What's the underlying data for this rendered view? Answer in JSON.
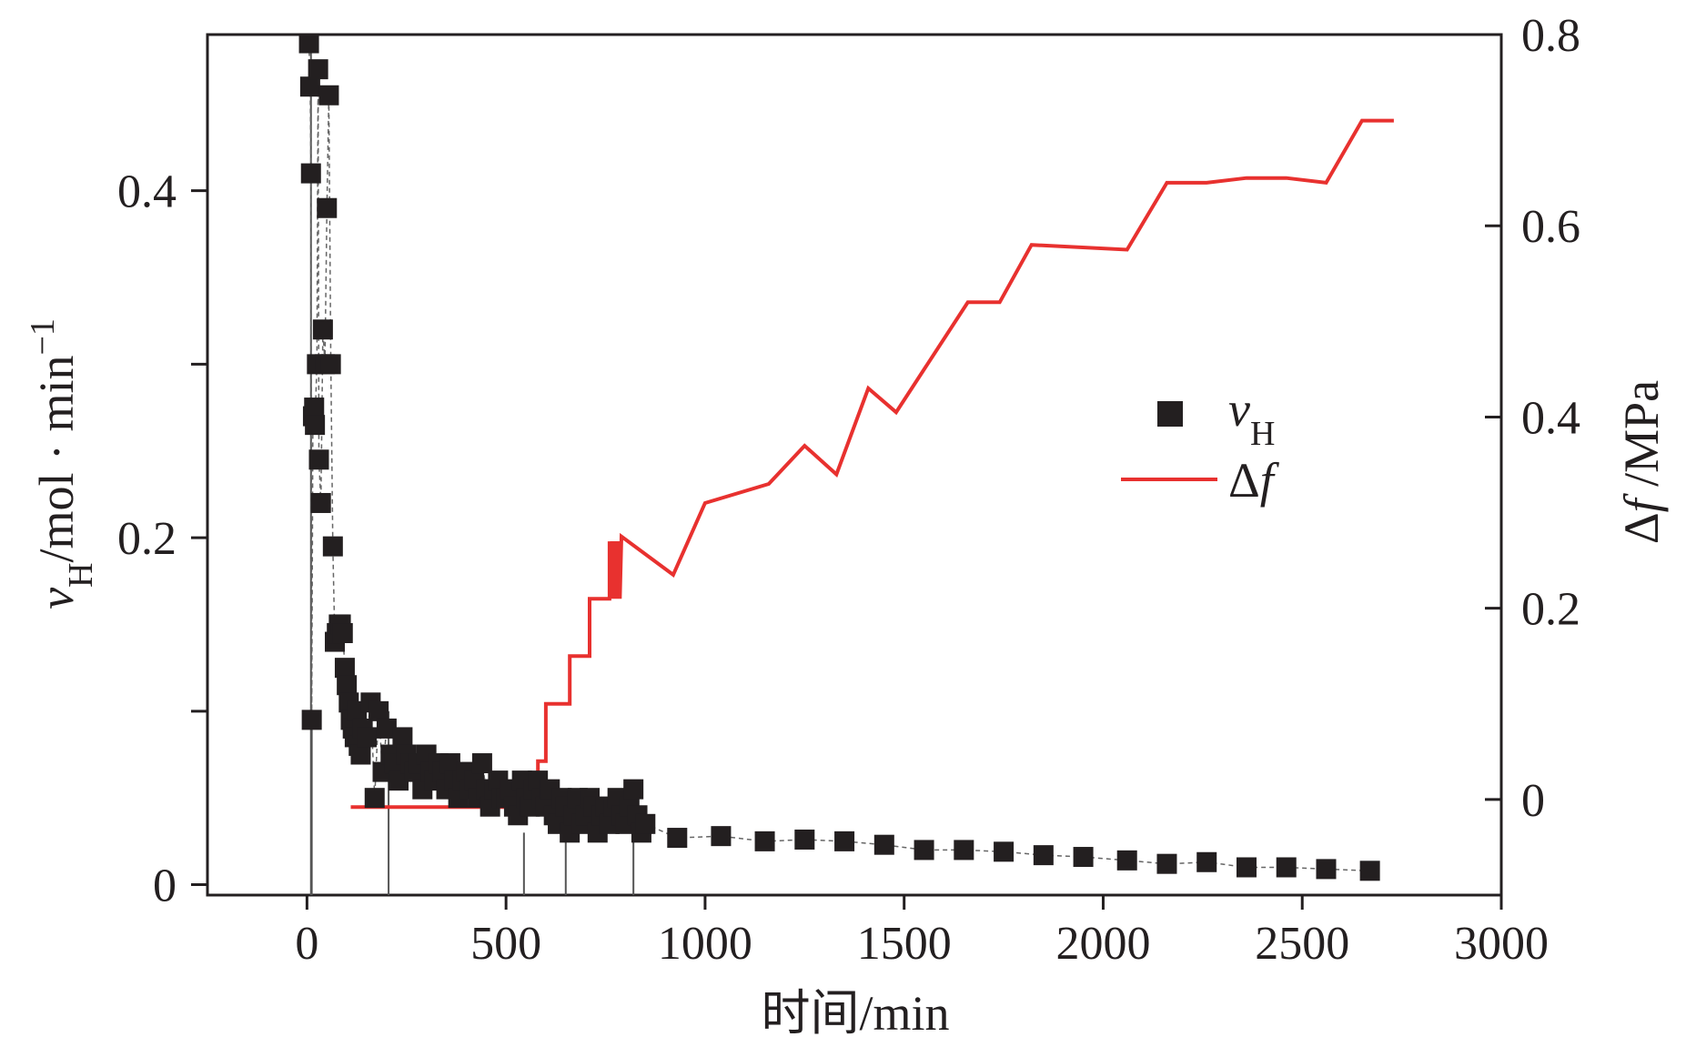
{
  "chart_data": {
    "type": "scatter+line",
    "title": "",
    "xlabel": "时间/min",
    "ylabel_left": {
      "var": "v",
      "sub": "H",
      "unit": "/mol · min",
      "sup": "−1"
    },
    "ylabel_right": {
      "pre": "Δ",
      "var": "f",
      "unit": " /MPa"
    },
    "xlim": [
      -250,
      3000
    ],
    "xticks": [
      0,
      500,
      1000,
      1500,
      2000,
      2500,
      3000
    ],
    "xtick_labels": [
      "0",
      "500",
      "1000",
      "1500",
      "2000",
      "2500",
      "3000"
    ],
    "ylim_left": [
      -0.006,
      0.49
    ],
    "yticks_left": [
      0,
      0.1,
      0.2,
      0.3,
      0.4
    ],
    "ytick_labels_left": {
      "0": "0",
      "0.2": "0.2",
      "0.4": "0.4"
    },
    "ylim_right": [
      -0.1,
      0.8
    ],
    "yticks_right": [
      0,
      0.2,
      0.4,
      0.6,
      0.8
    ],
    "ytick_labels_right": [
      "0",
      "0.2",
      "0.4",
      "0.6",
      "0.8"
    ],
    "legend": {
      "position": "center-right",
      "entries": [
        {
          "label_var": "v",
          "label_sub": "H",
          "marker": "square",
          "color": "#231f20"
        },
        {
          "label_pre": "Δ",
          "label_var": "f",
          "marker": "line",
          "color": "#e8312f"
        }
      ]
    },
    "colors": {
      "vH": "#231f20",
      "df": "#e8312f",
      "axis": "#231f20",
      "spike": "#555555"
    },
    "series": [
      {
        "name": "vH",
        "axis": "left",
        "x": [
          5,
          8,
          10,
          12,
          15,
          18,
          20,
          25,
          28,
          30,
          35,
          40,
          45,
          50,
          55,
          60,
          65,
          70,
          75,
          80,
          85,
          90,
          95,
          100,
          105,
          110,
          115,
          120,
          125,
          130,
          135,
          140,
          150,
          160,
          170,
          180,
          190,
          200,
          210,
          220,
          230,
          240,
          250,
          260,
          270,
          280,
          290,
          300,
          310,
          320,
          330,
          340,
          350,
          360,
          370,
          380,
          390,
          400,
          410,
          420,
          430,
          440,
          450,
          460,
          470,
          480,
          490,
          500,
          510,
          520,
          530,
          540,
          550,
          560,
          570,
          580,
          590,
          600,
          610,
          620,
          630,
          640,
          650,
          660,
          670,
          680,
          690,
          700,
          710,
          720,
          730,
          740,
          750,
          760,
          770,
          780,
          790,
          800,
          810,
          820,
          830,
          840,
          850,
          930,
          1040,
          1150,
          1250,
          1350,
          1450,
          1550,
          1650,
          1750,
          1850,
          1950,
          2060,
          2160,
          2260,
          2360,
          2460,
          2560,
          2670
        ],
        "y": [
          0.485,
          0.46,
          0.41,
          0.095,
          0.27,
          0.275,
          0.265,
          0.3,
          0.47,
          0.245,
          0.22,
          0.32,
          0.3,
          0.39,
          0.455,
          0.3,
          0.195,
          0.14,
          0.145,
          0.15,
          0.15,
          0.145,
          0.125,
          0.115,
          0.105,
          0.095,
          0.09,
          0.085,
          0.1,
          0.08,
          0.075,
          0.09,
          0.085,
          0.105,
          0.05,
          0.1,
          0.065,
          0.09,
          0.075,
          0.07,
          0.06,
          0.085,
          0.075,
          0.07,
          0.065,
          0.07,
          0.055,
          0.075,
          0.065,
          0.06,
          0.07,
          0.065,
          0.055,
          0.07,
          0.06,
          0.05,
          0.06,
          0.065,
          0.055,
          0.06,
          0.05,
          0.07,
          0.055,
          0.045,
          0.055,
          0.06,
          0.05,
          0.05,
          0.055,
          0.045,
          0.04,
          0.06,
          0.05,
          0.045,
          0.055,
          0.06,
          0.05,
          0.045,
          0.055,
          0.04,
          0.035,
          0.05,
          0.045,
          0.03,
          0.04,
          0.05,
          0.035,
          0.04,
          0.05,
          0.045,
          0.03,
          0.04,
          0.045,
          0.035,
          0.045,
          0.05,
          0.04,
          0.035,
          0.045,
          0.055,
          0.04,
          0.03,
          0.035,
          0.027,
          0.028,
          0.025,
          0.026,
          0.025,
          0.023,
          0.02,
          0.02,
          0.019,
          0.017,
          0.016,
          0.014,
          0.012,
          0.013,
          0.01,
          0.01,
          0.009,
          0.008
        ]
      },
      {
        "name": "Δf",
        "axis": "right",
        "x": [
          110,
          580,
          580,
          600,
          600,
          620,
          620,
          660,
          660,
          670,
          670,
          710,
          710,
          720,
          720,
          760,
          760,
          762,
          766,
          770,
          774,
          778,
          782,
          786,
          790,
          920,
          1000,
          1160,
          1250,
          1330,
          1410,
          1480,
          1660,
          1740,
          1820,
          2060,
          2160,
          2260,
          2360,
          2460,
          2560,
          2650,
          2730
        ],
        "y": [
          -0.008,
          -0.008,
          0.04,
          0.04,
          0.1,
          0.1,
          0.1,
          0.1,
          0.15,
          0.15,
          0.15,
          0.15,
          0.21,
          0.21,
          0.21,
          0.21,
          0.27,
          0.21,
          0.27,
          0.21,
          0.27,
          0.21,
          0.27,
          0.21,
          0.275,
          0.235,
          0.31,
          0.33,
          0.37,
          0.34,
          0.43,
          0.405,
          0.52,
          0.52,
          0.58,
          0.575,
          0.645,
          0.645,
          0.65,
          0.65,
          0.645,
          0.71,
          0.71
        ]
      }
    ]
  }
}
